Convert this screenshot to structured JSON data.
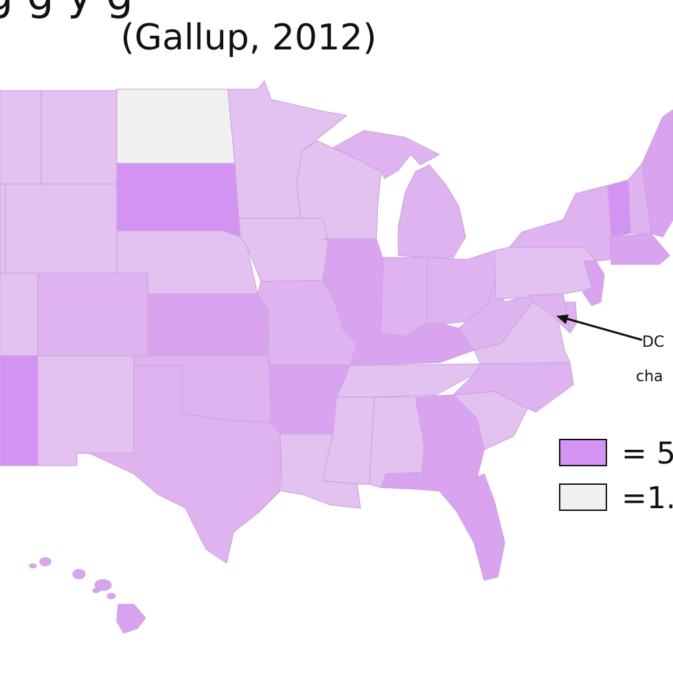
{
  "title": {
    "partial_line": "g g y g",
    "subtitle": "(Gallup, 2012)"
  },
  "annotation": {
    "line1": "DC",
    "line2": "cha"
  },
  "legend": [
    {
      "label": "= 5",
      "color": "#d393f3"
    },
    {
      "label": "=1.",
      "color": "#f0f0f0"
    }
  ],
  "colors": {
    "darkest": "#d393f3",
    "dark": "#d9a3f0",
    "medium": "#dfb3f0",
    "light": "#e3c2f2",
    "lightest": "#f0f0f0"
  },
  "states": [
    {
      "id": "WA",
      "shade": "light"
    },
    {
      "id": "OR",
      "shade": "light"
    },
    {
      "id": "ID",
      "shade": "light"
    },
    {
      "id": "MT",
      "shade": "light"
    },
    {
      "id": "ND",
      "shade": "lightest"
    },
    {
      "id": "SD",
      "shade": "darkest"
    },
    {
      "id": "MN",
      "shade": "light"
    },
    {
      "id": "WI",
      "shade": "light"
    },
    {
      "id": "MI",
      "shade": "medium"
    },
    {
      "id": "WY",
      "shade": "light"
    },
    {
      "id": "NE",
      "shade": "light"
    },
    {
      "id": "IA",
      "shade": "light"
    },
    {
      "id": "IL",
      "shade": "dark"
    },
    {
      "id": "IN",
      "shade": "medium"
    },
    {
      "id": "OH",
      "shade": "medium"
    },
    {
      "id": "PA",
      "shade": "light"
    },
    {
      "id": "NY",
      "shade": "medium"
    },
    {
      "id": "VT",
      "shade": "darkest"
    },
    {
      "id": "NH",
      "shade": "medium"
    },
    {
      "id": "ME",
      "shade": "dark"
    },
    {
      "id": "MA",
      "shade": "dark"
    },
    {
      "id": "NJ",
      "shade": "dark"
    },
    {
      "id": "MD",
      "shade": "medium"
    },
    {
      "id": "DE",
      "shade": "medium"
    },
    {
      "id": "UT",
      "shade": "light"
    },
    {
      "id": "CO",
      "shade": "medium"
    },
    {
      "id": "KS",
      "shade": "dark"
    },
    {
      "id": "MO",
      "shade": "medium"
    },
    {
      "id": "KY",
      "shade": "dark"
    },
    {
      "id": "WV",
      "shade": "medium"
    },
    {
      "id": "VA",
      "shade": "light"
    },
    {
      "id": "AZ",
      "shade": "darkest"
    },
    {
      "id": "NM",
      "shade": "light"
    },
    {
      "id": "OK",
      "shade": "medium"
    },
    {
      "id": "AR",
      "shade": "dark"
    },
    {
      "id": "TN",
      "shade": "light"
    },
    {
      "id": "NC",
      "shade": "medium"
    },
    {
      "id": "SC",
      "shade": "light"
    },
    {
      "id": "TX",
      "shade": "medium"
    },
    {
      "id": "LA",
      "shade": "light"
    },
    {
      "id": "MS",
      "shade": "light"
    },
    {
      "id": "AL",
      "shade": "light"
    },
    {
      "id": "GA",
      "shade": "dark"
    },
    {
      "id": "FL",
      "shade": "dark"
    },
    {
      "id": "HI",
      "shade": "dark"
    }
  ]
}
